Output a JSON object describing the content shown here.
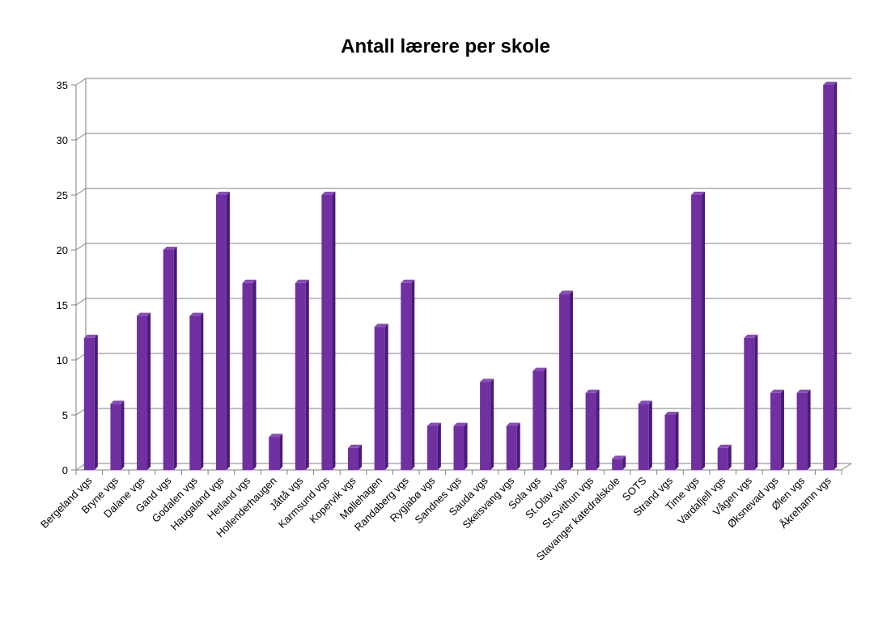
{
  "chart_data": {
    "type": "bar",
    "title": "Antall lærere per skole",
    "xlabel": "",
    "ylabel": "",
    "ylim": [
      0,
      35
    ],
    "yticks": [
      0,
      5,
      10,
      15,
      20,
      25,
      30,
      35
    ],
    "grid": true,
    "legend": "none",
    "bar_color": "#7030A0",
    "categories": [
      "Bergeland vgs",
      "Bryne vgs",
      "Dalane vgs",
      "Gand vgs",
      "Godalen vgs",
      "Haugaland vgs",
      "Hetland vgs",
      "Hollenderhaugen",
      "Jåttå vgs",
      "Karmsund vgs",
      "Kopervik vgs",
      "Møllehagen",
      "Randaberg vgs",
      "Rygjabø vgs",
      "Sandnes vgs",
      "Sauda vgs",
      "Skeisvang vgs",
      "Sola vgs",
      "St.Olav vgs",
      "St.Svithun vgs",
      "Stavanger katedralskole",
      "SOTS",
      "Strand vgs",
      "Time vgs",
      "Vardafjell vgs",
      "Vågen vgs",
      "Øksnevad vgs",
      "Ølen vgs",
      "Åkrehamn vgs"
    ],
    "values": [
      12,
      6,
      14,
      20,
      14,
      25,
      17,
      3,
      17,
      25,
      2,
      13,
      17,
      4,
      4,
      8,
      4,
      9,
      16,
      7,
      1,
      6,
      5,
      25,
      2,
      12,
      7,
      7,
      35
    ]
  }
}
